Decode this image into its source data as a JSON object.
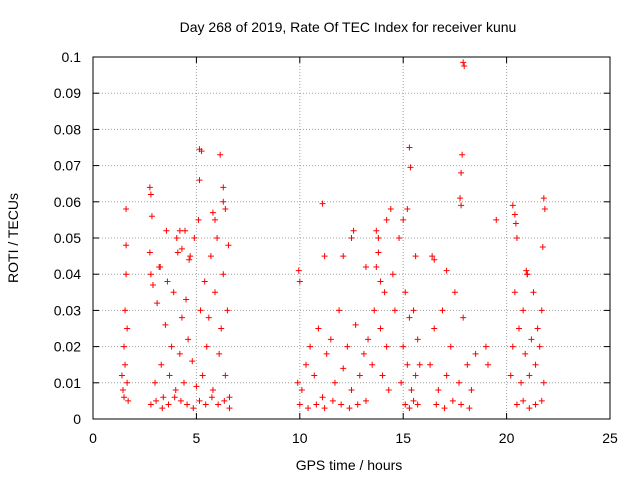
{
  "chart_data": {
    "type": "scatter",
    "title": "Day 268 of 2019, Rate Of TEC Index for receiver kunu",
    "xlabel": "GPS time / hours",
    "ylabel": "ROTI / TECUs",
    "xlim": [
      0,
      25
    ],
    "ylim": [
      0,
      0.1
    ],
    "xticks": [
      0,
      5,
      10,
      15,
      20,
      25
    ],
    "xtick_labels": [
      "0",
      "5",
      "10",
      "15",
      "20",
      "25"
    ],
    "yticks": [
      0,
      0.01,
      0.02,
      0.03,
      0.04,
      0.05,
      0.06,
      0.07,
      0.08,
      0.09,
      0.1
    ],
    "ytick_labels": [
      "0",
      "0.01",
      "0.02",
      "0.03",
      "0.04",
      "0.05",
      "0.06",
      "0.07",
      "0.08",
      "0.09",
      "0.1"
    ],
    "grid": true,
    "grid_style": "dotted",
    "legend": "none",
    "marker": "+",
    "color": "#ff0000",
    "x": [
      1.4,
      1.45,
      1.5,
      1.5,
      1.55,
      1.55,
      1.6,
      1.6,
      1.6,
      1.65,
      1.65,
      1.7,
      2.75,
      2.8,
      2.85,
      3.0,
      3.1,
      3.2,
      3.3,
      3.4,
      3.5,
      3.6,
      3.7,
      3.8,
      3.9,
      4.0,
      4.1,
      4.2,
      4.3,
      4.4,
      4.5,
      4.6,
      4.7,
      4.8,
      4.9,
      5.0,
      5.1,
      5.2,
      5.3,
      5.4,
      5.5,
      5.6,
      5.7,
      5.8,
      5.9,
      6.0,
      6.1,
      6.2,
      6.3,
      6.4,
      6.5,
      6.6,
      2.8,
      3.05,
      3.35,
      3.65,
      3.95,
      4.25,
      4.55,
      4.85,
      5.15,
      5.45,
      5.75,
      6.05,
      6.35,
      6.6,
      5.15,
      5.25,
      5.15,
      6.15,
      6.3,
      6.3,
      2.75,
      2.8,
      2.9,
      4.05,
      4.2,
      4.3,
      4.45,
      5.8,
      5.9,
      6.4,
      6.55,
      3.25,
      3.55,
      4.65,
      9.9,
      10.1,
      10.3,
      10.5,
      10.7,
      10.9,
      11.1,
      11.3,
      11.5,
      11.7,
      11.9,
      12.1,
      12.3,
      12.5,
      12.7,
      12.9,
      13.1,
      13.3,
      10.0,
      10.4,
      10.8,
      11.2,
      11.6,
      12.0,
      12.4,
      12.8,
      13.2,
      9.95,
      10.0,
      11.1,
      11.2,
      12.1,
      12.5,
      12.6,
      13.2,
      13.5,
      13.6,
      13.7,
      13.8,
      13.9,
      14.0,
      14.1,
      14.2,
      14.3,
      13.7,
      13.8,
      13.9,
      14.2,
      14.4,
      14.5,
      14.6,
      14.9,
      15.0,
      15.1,
      15.2,
      15.3,
      15.4,
      15.5,
      15.6,
      15.7,
      15.8,
      15.1,
      15.3,
      15.5,
      15.7,
      15.3,
      15.35,
      15.2,
      15.0,
      14.8,
      15.6,
      16.3,
      16.5,
      16.7,
      16.9,
      17.1,
      17.3,
      17.5,
      17.7,
      17.9,
      18.1,
      18.3,
      18.5,
      16.6,
      17.0,
      17.4,
      17.8,
      18.2,
      17.9,
      17.95,
      17.85,
      17.8,
      17.75,
      17.8,
      16.4,
      16.5,
      17.1,
      19.0,
      19.1,
      19.5,
      20.2,
      20.3,
      20.4,
      20.5,
      20.6,
      20.7,
      20.8,
      20.9,
      21.0,
      21.1,
      21.2,
      21.3,
      21.4,
      21.5,
      21.6,
      21.7,
      21.8,
      20.5,
      20.8,
      21.1,
      21.4,
      21.7,
      20.3,
      20.4,
      20.45,
      21.8,
      21.85,
      21.75,
      20.95,
      21.0
    ],
    "y": [
      0.012,
      0.008,
      0.02,
      0.006,
      0.015,
      0.03,
      0.04,
      0.048,
      0.058,
      0.01,
      0.025,
      0.005,
      0.064,
      0.062,
      0.056,
      0.01,
      0.032,
      0.042,
      0.015,
      0.006,
      0.026,
      0.038,
      0.012,
      0.02,
      0.035,
      0.008,
      0.046,
      0.018,
      0.028,
      0.01,
      0.033,
      0.022,
      0.045,
      0.016,
      0.05,
      0.009,
      0.055,
      0.03,
      0.012,
      0.038,
      0.02,
      0.028,
      0.045,
      0.008,
      0.035,
      0.05,
      0.018,
      0.025,
      0.04,
      0.012,
      0.03,
      0.006,
      0.004,
      0.005,
      0.003,
      0.004,
      0.006,
      0.005,
      0.004,
      0.003,
      0.005,
      0.004,
      0.006,
      0.004,
      0.005,
      0.003,
      0.0745,
      0.074,
      0.066,
      0.073,
      0.064,
      0.06,
      0.046,
      0.04,
      0.037,
      0.05,
      0.052,
      0.047,
      0.052,
      0.057,
      0.055,
      0.058,
      0.048,
      0.042,
      0.052,
      0.044,
      0.01,
      0.008,
      0.015,
      0.02,
      0.012,
      0.025,
      0.006,
      0.018,
      0.022,
      0.01,
      0.03,
      0.014,
      0.02,
      0.008,
      0.026,
      0.012,
      0.018,
      0.022,
      0.004,
      0.003,
      0.004,
      0.003,
      0.005,
      0.004,
      0.003,
      0.004,
      0.005,
      0.041,
      0.038,
      0.0595,
      0.045,
      0.045,
      0.05,
      0.052,
      0.042,
      0.015,
      0.03,
      0.042,
      0.05,
      0.025,
      0.012,
      0.035,
      0.02,
      0.008,
      0.052,
      0.046,
      0.038,
      0.055,
      0.058,
      0.04,
      0.03,
      0.01,
      0.02,
      0.035,
      0.015,
      0.028,
      0.008,
      0.03,
      0.012,
      0.022,
      0.015,
      0.004,
      0.003,
      0.005,
      0.004,
      0.075,
      0.0695,
      0.058,
      0.055,
      0.05,
      0.045,
      0.015,
      0.025,
      0.008,
      0.03,
      0.012,
      0.02,
      0.035,
      0.01,
      0.028,
      0.015,
      0.008,
      0.018,
      0.004,
      0.003,
      0.005,
      0.004,
      0.003,
      0.0985,
      0.0975,
      0.073,
      0.068,
      0.061,
      0.059,
      0.045,
      0.044,
      0.041,
      0.02,
      0.015,
      0.055,
      0.012,
      0.02,
      0.035,
      0.05,
      0.025,
      0.01,
      0.03,
      0.018,
      0.04,
      0.012,
      0.022,
      0.035,
      0.015,
      0.025,
      0.02,
      0.03,
      0.01,
      0.004,
      0.005,
      0.003,
      0.004,
      0.005,
      0.059,
      0.0565,
      0.054,
      0.061,
      0.058,
      0.0475,
      0.041,
      0.04
    ]
  }
}
